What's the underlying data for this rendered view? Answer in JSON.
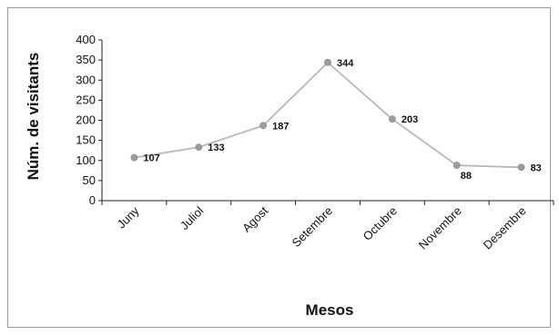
{
  "chart_data": {
    "type": "line",
    "title": "",
    "xlabel": "Mesos",
    "ylabel": "Núm. de visitants",
    "categories": [
      "Juny",
      "Juliol",
      "Agost",
      "Setembre",
      "Octubre",
      "Novembre",
      "Desembre"
    ],
    "series": [
      {
        "values": [
          107,
          133,
          187,
          344,
          203,
          88,
          83
        ]
      }
    ],
    "ylim": [
      0,
      400
    ],
    "yticks": [
      0,
      50,
      100,
      150,
      200,
      250,
      300,
      350,
      400
    ],
    "grid": false,
    "legend": "none",
    "line_color": "#b8b8b8",
    "marker_color": "#9c9c9c"
  }
}
